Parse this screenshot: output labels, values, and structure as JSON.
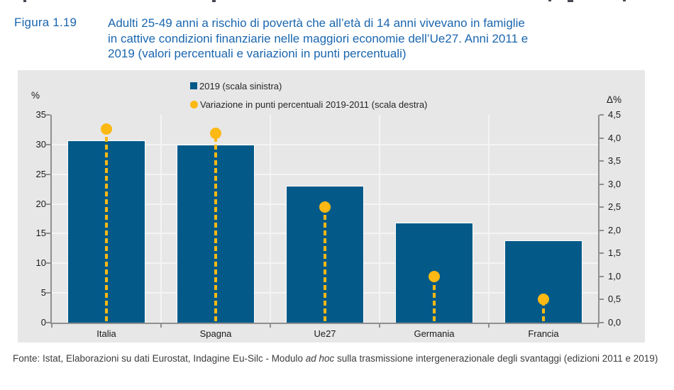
{
  "header": {
    "figure_label": "Figura 1.19",
    "title_lines": [
      "Adulti 25-49 anni a rischio di povertà che all’età di 14 anni vivevano in famiglie",
      "in cattive condizioni finanziarie nelle maggiori economie dell’Ue27. Anni 2011 e",
      "2019 (valori percentuali e variazioni in punti percentuali)"
    ]
  },
  "legend": {
    "series_bar": "2019 (scala sinistra)",
    "series_dot": "Variazione in punti percentuali 2019-2011 (scala destra)"
  },
  "axes": {
    "left_unit": "%",
    "right_unit": "Δ%",
    "left_ticks": [
      "35",
      "30",
      "25",
      "20",
      "15",
      "10",
      "5",
      "0"
    ],
    "right_ticks": [
      "4,5",
      "4,0",
      "3,5",
      "3,0",
      "2,5",
      "2,0",
      "1,5",
      "1,0",
      "0,5",
      "0,0"
    ]
  },
  "chart_data": {
    "type": "bar",
    "categories": [
      "Italia",
      "Spagna",
      "Ue27",
      "Germania",
      "Francia"
    ],
    "series": [
      {
        "name": "2019 (scala sinistra)",
        "type": "bar",
        "axis": "left",
        "values": [
          30.7,
          30.0,
          23.0,
          16.9,
          13.8
        ]
      },
      {
        "name": "Variazione in punti percentuali 2019-2011 (scala destra)",
        "type": "scatter",
        "axis": "right",
        "values": [
          4.2,
          4.1,
          2.5,
          1.0,
          0.5
        ]
      }
    ],
    "title": "Adulti 25-49 anni a rischio di povertà che all'età di 14 anni vivevano in famiglie in cattive condizioni finanziarie nelle maggiori economie dell'Ue27. Anni 2011 e 2019",
    "xlabel": "",
    "ylabel_left": "%",
    "ylabel_right": "Δ%",
    "left_axis": {
      "min": 0,
      "max": 35,
      "step": 5
    },
    "right_axis": {
      "min": 0,
      "max": 4.5,
      "step": 0.5
    },
    "grid": true,
    "legend_position": "top"
  },
  "footer": {
    "pre": "Fonte: Istat, Elaborazioni su dati Eurostat, Indagine Eu-Silc - Modulo ",
    "italic": "ad hoc",
    "post": " sulla trasmissione intergenerazionale degli svantaggi (edizioni 2011 e 2019)"
  },
  "colors": {
    "title_blue": "#1A66AE",
    "bar_blue": "#035a88",
    "accent_yellow": "#FCB813",
    "panel_gray": "#e7e7e7"
  }
}
